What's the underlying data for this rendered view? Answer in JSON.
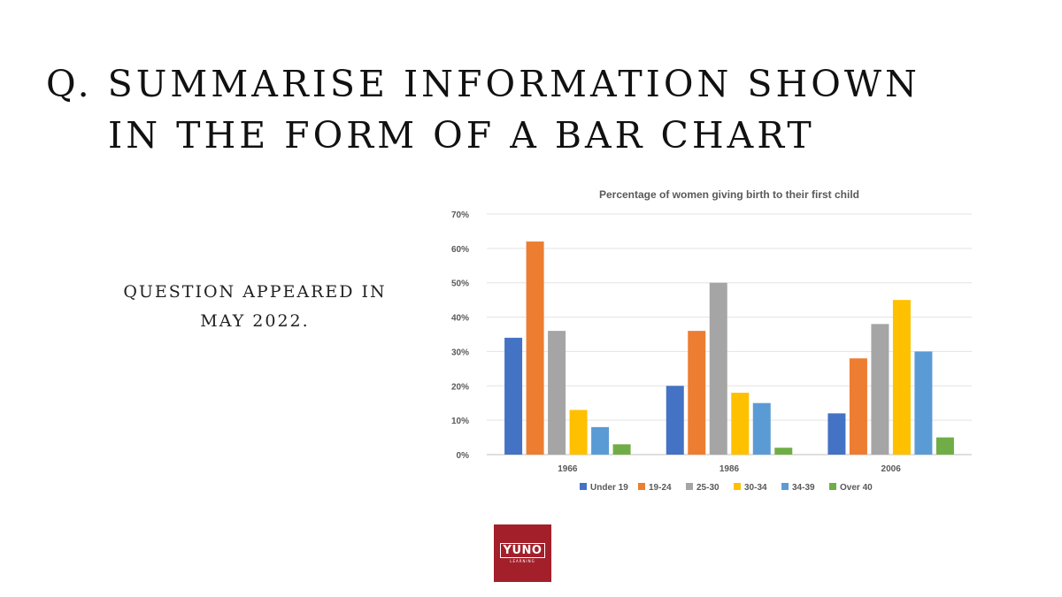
{
  "heading": {
    "line1": "Q. SUMMARISE INFORMATION SHOWN",
    "line2": "IN THE FORM OF A BAR CHART"
  },
  "note": {
    "line1": "QUESTION APPEARED IN",
    "line2": "MAY 2022."
  },
  "logo": {
    "text": "YUNO",
    "subtext": "LEARNING",
    "color": "#a31f2a"
  },
  "chart_data": {
    "type": "bar",
    "title": "Percentage of women giving birth to their first child",
    "xlabel": "",
    "ylabel": "",
    "categories": [
      "1966",
      "1986",
      "2006"
    ],
    "ylim": [
      0,
      70
    ],
    "yticks": [
      "0%",
      "10%",
      "20%",
      "30%",
      "40%",
      "50%",
      "60%",
      "70%"
    ],
    "grid": true,
    "legend_position": "bottom",
    "series": [
      {
        "name": "Under 19",
        "color": "#4472c4",
        "values": [
          34,
          20,
          12
        ]
      },
      {
        "name": "19-24",
        "color": "#ed7d31",
        "values": [
          62,
          36,
          28
        ]
      },
      {
        "name": "25-30",
        "color": "#a5a5a5",
        "values": [
          36,
          50,
          38
        ]
      },
      {
        "name": "30-34",
        "color": "#ffc000",
        "values": [
          13,
          18,
          45
        ]
      },
      {
        "name": "34-39",
        "color": "#5b9bd5",
        "values": [
          8,
          15,
          30
        ]
      },
      {
        "name": "Over 40",
        "color": "#70ad47",
        "values": [
          3,
          2,
          5
        ]
      }
    ]
  }
}
